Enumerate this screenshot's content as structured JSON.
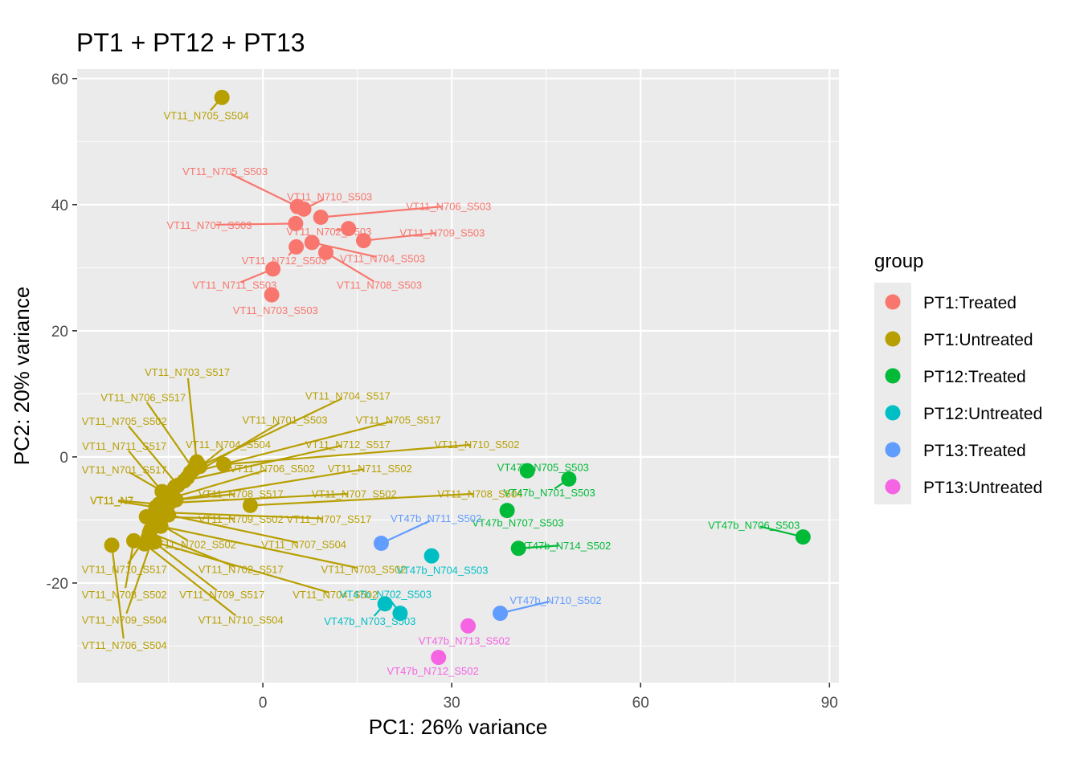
{
  "chart_data": {
    "type": "scatter",
    "title": "PT1 + PT12 + PT13",
    "xlabel": "PC1: 26% variance",
    "ylabel": "PC2: 20% variance",
    "xlim": [
      -29.5,
      91.5
    ],
    "ylim": [
      -35.8,
      61.5
    ],
    "x_ticks": [
      0,
      30,
      60,
      90
    ],
    "y_ticks": [
      -20,
      0,
      20,
      40,
      60
    ],
    "grid": true,
    "legend_title": "group",
    "legend_position": "right",
    "groups": [
      {
        "name": "PT1:Treated",
        "color": "#F8766D"
      },
      {
        "name": "PT1:Untreated",
        "color": "#B79F00"
      },
      {
        "name": "PT12:Treated",
        "color": "#00BA38"
      },
      {
        "name": "PT12:Untreated",
        "color": "#00BFC4"
      },
      {
        "name": "PT13:Treated",
        "color": "#619CFF"
      },
      {
        "name": "PT13:Untreated",
        "color": "#F564E3"
      }
    ],
    "points": [
      {
        "label": "VT11_N705_S504",
        "group": 1,
        "x": -6.5,
        "y": 57.0,
        "lx": -9,
        "ly": 54.2
      },
      {
        "label": "VT11_N705_S503",
        "group": 0,
        "x": 5.5,
        "y": 39.7,
        "lx": -6,
        "ly": 45.3
      },
      {
        "label": "VT11_N710_S503",
        "group": 0,
        "x": 6.5,
        "y": 39.3,
        "lx": 10.6,
        "ly": 41.3
      },
      {
        "label": "VT11_N706_S503",
        "group": 0,
        "x": 9.2,
        "y": 38.0,
        "lx": 29.5,
        "ly": 39.8
      },
      {
        "label": "VT11_N707_S503",
        "group": 0,
        "x": 5.2,
        "y": 37.0,
        "lx": -8.5,
        "ly": 36.8
      },
      {
        "label": "VT11_N702_S503",
        "group": 0,
        "x": 13.6,
        "y": 36.2,
        "lx": 10.5,
        "ly": 35.8
      },
      {
        "label": "VT11_N709_S503",
        "group": 0,
        "x": 16.0,
        "y": 34.3,
        "lx": 28.5,
        "ly": 35.6
      },
      {
        "label": "VT11_N704_S503",
        "group": 0,
        "x": 7.8,
        "y": 34.0,
        "lx": 19.0,
        "ly": 31.5
      },
      {
        "label": "VT11_N712_S503",
        "group": 0,
        "x": 5.3,
        "y": 33.3,
        "lx": 3.4,
        "ly": 31.2
      },
      {
        "label": "VT11_N708_S503",
        "group": 0,
        "x": 10.0,
        "y": 32.4,
        "lx": 18.5,
        "ly": 27.3
      },
      {
        "label": "VT11_N711_S503",
        "group": 0,
        "x": 1.6,
        "y": 29.8,
        "lx": -4.5,
        "ly": 27.3
      },
      {
        "label": "VT11_N703_S503",
        "group": 0,
        "x": 1.4,
        "y": 25.7,
        "lx": 2.0,
        "ly": 23.3
      },
      {
        "label": "VT11_N703_S517",
        "group": 1,
        "x": -10.5,
        "y": -0.8,
        "lx": -12.0,
        "ly": 13.5
      },
      {
        "label": "VT11_N706_S517",
        "group": 1,
        "x": -11.0,
        "y": -2.0,
        "lx": -19.0,
        "ly": 9.5
      },
      {
        "label": "VT11_N704_S517",
        "group": 1,
        "x": -10.0,
        "y": -1.5,
        "lx": 13.5,
        "ly": 9.7
      },
      {
        "label": "VT11_N705_S502",
        "group": 1,
        "x": -13.5,
        "y": -4.5,
        "lx": -22.0,
        "ly": 5.7
      },
      {
        "label": "VT11_N701_S503",
        "group": 1,
        "x": -12.0,
        "y": -3.3,
        "lx": 3.5,
        "ly": 5.9
      },
      {
        "label": "VT11_N705_S517",
        "group": 1,
        "x": -11.5,
        "y": -2.5,
        "lx": 21.5,
        "ly": 5.9
      },
      {
        "label": "VT11_N711_S517",
        "group": 1,
        "x": -16.0,
        "y": -5.5,
        "lx": -22.0,
        "ly": 1.8
      },
      {
        "label": "VT11_N704_S504",
        "group": 1,
        "x": -14.0,
        "y": -4.8,
        "lx": -5.5,
        "ly": 2.0
      },
      {
        "label": "VT11_N712_S517",
        "group": 1,
        "x": -12.5,
        "y": -3.8,
        "lx": 13.5,
        "ly": 2.0
      },
      {
        "label": "VT11_N710_S502",
        "group": 1,
        "x": -6.2,
        "y": -1.2,
        "lx": 34.0,
        "ly": 2.0
      },
      {
        "label": "VT11_N701_S517",
        "group": 1,
        "x": -15.0,
        "y": -6.0,
        "lx": -22.0,
        "ly": -2.0
      },
      {
        "label": "VT11_N706_S502",
        "group": 1,
        "x": -14.5,
        "y": -6.5,
        "lx": 1.5,
        "ly": -1.8
      },
      {
        "label": "VT11_N711_S502",
        "group": 1,
        "x": -13.8,
        "y": -6.8,
        "lx": 17.0,
        "ly": -1.8
      },
      {
        "label": "VT11_N7",
        "group": 1,
        "x": -16.5,
        "y": -7.5,
        "lx": -24.0,
        "ly": -6.8
      },
      {
        "label": "VT11_N7",
        "group": 1,
        "x": -17.0,
        "y": -8.0,
        "lx": -24.0,
        "ly": -6.9
      },
      {
        "label": "VT11_N708_S517",
        "group": 1,
        "x": -15.5,
        "y": -7.0,
        "lx": -3.5,
        "ly": -5.8
      },
      {
        "label": "VT11_N707_S502",
        "group": 1,
        "x": -14.8,
        "y": -7.3,
        "lx": 14.5,
        "ly": -5.8
      },
      {
        "label": "VT11_N708_S504",
        "group": 1,
        "x": -2.0,
        "y": -7.7,
        "lx": 34.5,
        "ly": -5.8
      },
      {
        "label": "VT11_N709_S502",
        "group": 1,
        "x": -18.5,
        "y": -9.5,
        "lx": -3.5,
        "ly": -9.8
      },
      {
        "label": "VT11_N707_S517",
        "group": 1,
        "x": -16.0,
        "y": -8.8,
        "lx": 10.5,
        "ly": -9.8
      },
      {
        "label": "VT11_N702_S502",
        "group": 1,
        "x": -17.5,
        "y": -10.0,
        "lx": -11.0,
        "ly": -13.8
      },
      {
        "label": "VT11_N707_S504",
        "group": 1,
        "x": -15.0,
        "y": -9.2,
        "lx": 6.5,
        "ly": -13.8
      },
      {
        "label": "VT11_N710_S517",
        "group": 1,
        "x": -17.8,
        "y": -11.5,
        "lx": -22.0,
        "ly": -17.8
      },
      {
        "label": "VT11_N702_S517",
        "group": 1,
        "x": -18.0,
        "y": -12.0,
        "lx": -3.5,
        "ly": -17.8
      },
      {
        "label": "VT11_N703_S502",
        "group": 1,
        "x": -16.2,
        "y": -11.0,
        "lx": 16.0,
        "ly": -17.8
      },
      {
        "label": "VT11_N708_S502",
        "group": 1,
        "x": -20.5,
        "y": -13.3,
        "lx": -22.0,
        "ly": -21.8
      },
      {
        "label": "VT11_N709_S517",
        "group": 1,
        "x": -18.2,
        "y": -12.8,
        "lx": -6.5,
        "ly": -21.8
      },
      {
        "label": "VT11_N704_S502",
        "group": 1,
        "x": -17.2,
        "y": -13.5,
        "lx": 11.5,
        "ly": -21.8
      },
      {
        "label": "VT11_N709_S504",
        "group": 1,
        "x": -17.6,
        "y": -13.2,
        "lx": -22.0,
        "ly": -25.8
      },
      {
        "label": "VT11_N710_S504",
        "group": 1,
        "x": -18.8,
        "y": -13.8,
        "lx": -3.5,
        "ly": -25.8
      },
      {
        "label": "VT11_N706_S504",
        "group": 1,
        "x": -24.0,
        "y": -14.0,
        "lx": -22.0,
        "ly": -29.8
      },
      {
        "label": "VT47b_N705_S503",
        "group": 2,
        "x": 42.0,
        "y": -2.2,
        "lx": 44.5,
        "ly": -1.6
      },
      {
        "label": "VT47b_N701_S503",
        "group": 2,
        "x": 48.6,
        "y": -3.5,
        "lx": 45.5,
        "ly": -5.6
      },
      {
        "label": "VT47b_N707_S503",
        "group": 2,
        "x": 38.8,
        "y": -8.5,
        "lx": 40.5,
        "ly": -10.4
      },
      {
        "label": "VT47b_N706_S503",
        "group": 2,
        "x": 85.8,
        "y": -12.7,
        "lx": 78.0,
        "ly": -10.8
      },
      {
        "label": "VT47b_N714_S502",
        "group": 2,
        "x": 40.6,
        "y": -14.5,
        "lx": 48.0,
        "ly": -14.0
      },
      {
        "label": "VT47b_N704_S503",
        "group": 3,
        "x": 26.8,
        "y": -15.7,
        "lx": 28.5,
        "ly": -17.9
      },
      {
        "label": "VT47b_N702_S503",
        "group": 3,
        "x": 21.8,
        "y": -24.8,
        "lx": 19.5,
        "ly": -21.7
      },
      {
        "label": "VT47b_N703_S503",
        "group": 3,
        "x": 19.4,
        "y": -23.3,
        "lx": 17.0,
        "ly": -26.0
      },
      {
        "label": "VT47b_N711_S502",
        "group": 4,
        "x": 18.8,
        "y": -13.7,
        "lx": 27.5,
        "ly": -9.7
      },
      {
        "label": "VT47b_N710_S502",
        "group": 4,
        "x": 37.7,
        "y": -24.8,
        "lx": 46.5,
        "ly": -22.7
      },
      {
        "label": "VT47b_N713_S502",
        "group": 5,
        "x": 32.6,
        "y": -26.8,
        "lx": 32.0,
        "ly": -29.1
      },
      {
        "label": "VT47b_N712_S502",
        "group": 5,
        "x": 27.9,
        "y": -31.8,
        "lx": 27.0,
        "ly": -33.9
      }
    ]
  }
}
